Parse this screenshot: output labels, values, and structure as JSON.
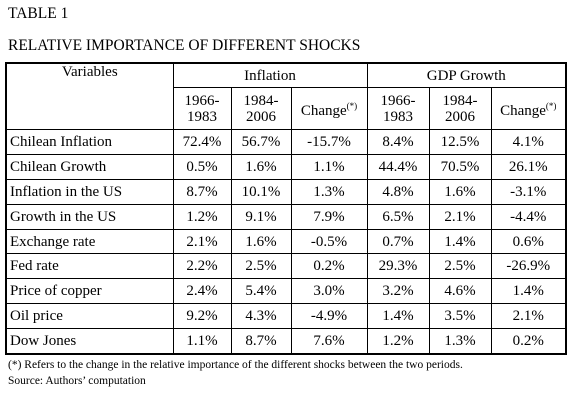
{
  "header": {
    "title": "TABLE 1",
    "subtitle": "RELATIVE IMPORTANCE OF DIFFERENT SHOCKS"
  },
  "table": {
    "corner": "Variables",
    "groups": [
      "Inflation",
      "GDP Growth"
    ],
    "subheaders": [
      [
        "1966-",
        "1983"
      ],
      [
        "1984-",
        "2006"
      ],
      {
        "text": "Change",
        "sup": "(*)"
      },
      [
        "1966-",
        "1983"
      ],
      [
        "1984-",
        "2006"
      ],
      {
        "text": "Change",
        "sup": "(*)"
      }
    ],
    "rows": [
      [
        "Chilean Inflation",
        "72.4%",
        "56.7%",
        "-15.7%",
        "8.4%",
        "12.5%",
        "4.1%"
      ],
      [
        "Chilean Growth",
        "0.5%",
        "1.6%",
        "1.1%",
        "44.4%",
        "70.5%",
        "26.1%"
      ],
      [
        "Inflation in the US",
        "8.7%",
        "10.1%",
        "1.3%",
        "4.8%",
        "1.6%",
        "-3.1%"
      ],
      [
        "Growth in the US",
        "1.2%",
        "9.1%",
        "7.9%",
        "6.5%",
        "2.1%",
        "-4.4%"
      ],
      [
        "Exchange rate",
        "2.1%",
        "1.6%",
        "-0.5%",
        "0.7%",
        "1.4%",
        "0.6%"
      ],
      [
        "Fed rate",
        "2.2%",
        "2.5%",
        "0.2%",
        "29.3%",
        "2.5%",
        "-26.9%"
      ],
      [
        "Price of copper",
        "2.4%",
        "5.4%",
        "3.0%",
        "3.2%",
        "4.6%",
        "1.4%"
      ],
      [
        "Oil price",
        "9.2%",
        "4.3%",
        "-4.9%",
        "1.4%",
        "3.5%",
        "2.1%"
      ],
      [
        "Dow Jones",
        "1.1%",
        "8.7%",
        "7.6%",
        "1.2%",
        "1.3%",
        "0.2%"
      ]
    ]
  },
  "notes": [
    "(*) Refers to the change in the relative importance of the different shocks between the two periods.",
    "Source: Authors’ computation"
  ]
}
